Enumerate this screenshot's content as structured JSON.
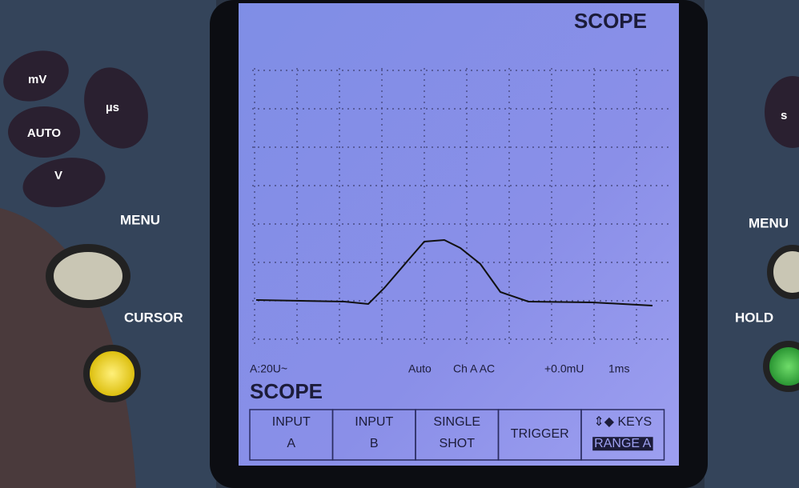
{
  "screen": {
    "mode": "SCOPE",
    "status": {
      "range": "A:20U~",
      "trigger_mode": "Auto",
      "channel": "Ch A AC",
      "offset": "+0.0mU",
      "timebase": "1ms"
    },
    "function": "SCOPE",
    "softkeys": [
      [
        "INPUT",
        "A"
      ],
      [
        "INPUT",
        "B"
      ],
      [
        "SINGLE",
        "SHOT"
      ],
      [
        "TRIGGER"
      ],
      [
        "⇕◆ KEYS",
        "RANGE A"
      ]
    ]
  },
  "device": {
    "left": {
      "buttons": [
        "mV",
        "AUTO",
        "µs",
        "V"
      ],
      "menu": "MENU",
      "cursor": "CURSOR"
    },
    "right": {
      "buttons": [
        "s"
      ],
      "menu": "MENU",
      "hold": "HOLD"
    }
  }
}
